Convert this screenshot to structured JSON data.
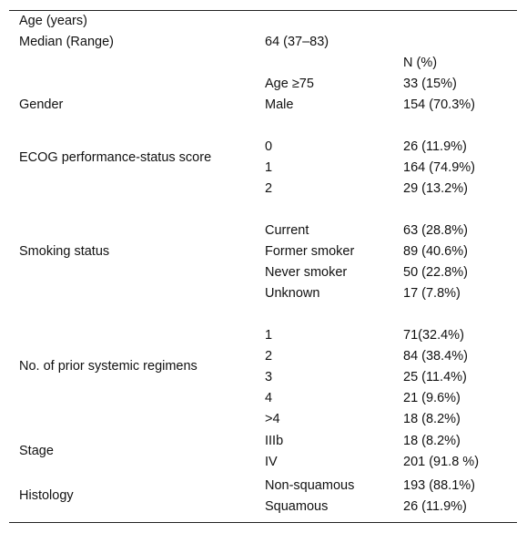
{
  "table": {
    "age_header": "Age (years)",
    "median_label": "Median (Range)",
    "median_value": "64 (37–83)",
    "n_header": "N (%)",
    "age75_label": "Age ≥75",
    "age75_value": "33 (15%)",
    "gender": {
      "label": "Gender",
      "items": [
        {
          "label": "Male",
          "value": "154 (70.3%)"
        }
      ]
    },
    "ecog": {
      "label": "ECOG performance-status score",
      "items": [
        {
          "label": "0",
          "value": "26 (11.9%)"
        },
        {
          "label": "1",
          "value": "164 (74.9%)"
        },
        {
          "label": "2",
          "value": "29 (13.2%)"
        }
      ]
    },
    "smoking": {
      "label": "Smoking status",
      "items": [
        {
          "label": "Current",
          "value": "63 (28.8%)"
        },
        {
          "label": "Former smoker",
          "value": "89 (40.6%)"
        },
        {
          "label": "Never smoker",
          "value": "50 (22.8%)"
        },
        {
          "label": "Unknown",
          "value": "17 (7.8%)"
        }
      ]
    },
    "regimens": {
      "label": "No. of prior systemic regimens",
      "items": [
        {
          "label": "1",
          "value": "71(32.4%)"
        },
        {
          "label": "2",
          "value": "84 (38.4%)"
        },
        {
          "label": "3",
          "value": "25 (11.4%)"
        },
        {
          "label": "4",
          "value": "21 (9.6%)"
        },
        {
          "label": ">4",
          "value": "18 (8.2%)"
        }
      ]
    },
    "stage": {
      "label": "Stage",
      "items": [
        {
          "label": "IIIb",
          "value": "18 (8.2%)"
        },
        {
          "label": "IV",
          "value": "201 (91.8 %)"
        }
      ]
    },
    "histology": {
      "label": "Histology",
      "items": [
        {
          "label": "Non-squamous",
          "value": "193 (88.1%)"
        },
        {
          "label": "Squamous",
          "value": "26 (11.9%)"
        }
      ]
    }
  }
}
